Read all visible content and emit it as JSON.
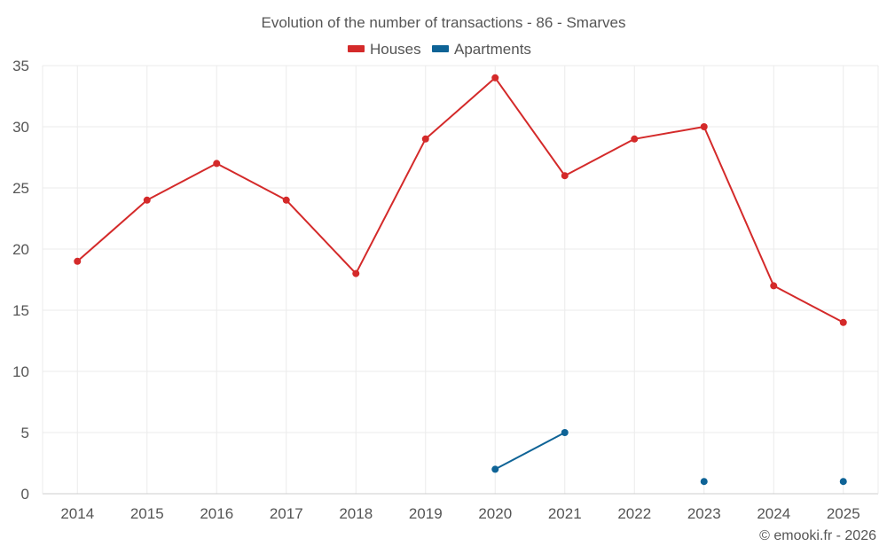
{
  "chart_data": {
    "type": "line",
    "title": "Evolution of the number of transactions - 86 - Smarves",
    "categories": [
      "2014",
      "2015",
      "2016",
      "2017",
      "2018",
      "2019",
      "2020",
      "2021",
      "2022",
      "2023",
      "2024",
      "2025"
    ],
    "ylim": [
      0,
      35
    ],
    "yticks": [
      0,
      5,
      10,
      15,
      20,
      25,
      30,
      35
    ],
    "grid": true,
    "legend_position": "top-center",
    "series": [
      {
        "name": "Houses",
        "color": "#d42a2a",
        "values": [
          19,
          24,
          27,
          24,
          18,
          29,
          34,
          26,
          29,
          30,
          17,
          14
        ]
      },
      {
        "name": "Apartments",
        "color": "#0e6396",
        "values": [
          null,
          null,
          null,
          null,
          null,
          null,
          2,
          5,
          null,
          1,
          null,
          1
        ]
      }
    ],
    "credit": "© emooki.fr - 2026"
  }
}
